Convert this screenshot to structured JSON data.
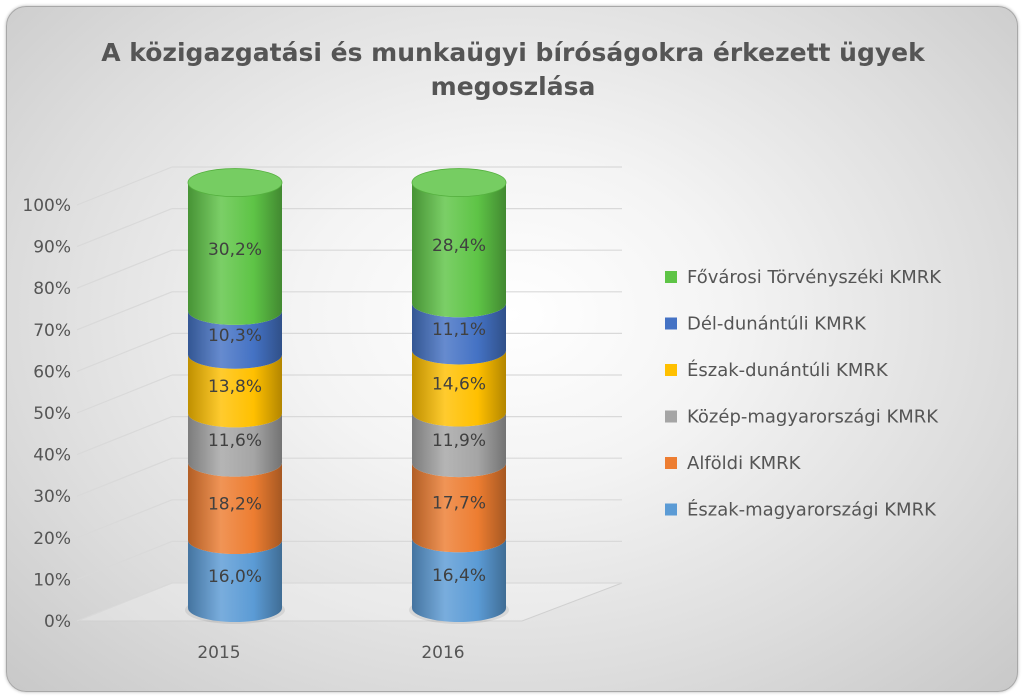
{
  "chart_data": {
    "type": "bar",
    "stacked": true,
    "percent_stacked": true,
    "shape": "3d-cylinder",
    "title": "A közigazgatási és munkaügyi bíróságokra érkezett ügyek megoszlása",
    "title_lines": [
      "A közigazgatási és munkaügyi bíróságokra érkezett ügyek",
      "megoszlása"
    ],
    "categories": [
      "2015",
      "2016"
    ],
    "y_ticks": [
      "0%",
      "10%",
      "20%",
      "30%",
      "40%",
      "50%",
      "60%",
      "70%",
      "80%",
      "90%",
      "100%"
    ],
    "ylim": [
      0,
      100
    ],
    "grid": true,
    "legend_position": "right",
    "series": [
      {
        "name": "Észak-magyarországi KMRK",
        "color": "#5b9bd5",
        "values": [
          16.0,
          16.4
        ],
        "labels": [
          "16,0%",
          "16,4%"
        ]
      },
      {
        "name": "Alföldi KMRK",
        "color": "#ed7d31",
        "values": [
          18.2,
          17.7
        ],
        "labels": [
          "18,2%",
          "17,7%"
        ]
      },
      {
        "name": "Közép-magyarországi KMRK",
        "color": "#a5a5a5",
        "values": [
          11.6,
          11.9
        ],
        "labels": [
          "11,6%",
          "11,9%"
        ]
      },
      {
        "name": "Észak-dunántúli KMRK",
        "color": "#ffc000",
        "values": [
          13.8,
          14.6
        ],
        "labels": [
          "13,8%",
          "14,6%"
        ]
      },
      {
        "name": "Dél-dunántúli KMRK",
        "color": "#4472c4",
        "values": [
          10.3,
          11.1
        ],
        "labels": [
          "10,3%",
          "11,1%"
        ]
      },
      {
        "name": "Fővárosi Törvényszéki KMRK",
        "color": "#5ec446",
        "values": [
          30.2,
          28.4
        ],
        "labels": [
          "30,2%",
          "28,4%"
        ]
      }
    ]
  }
}
